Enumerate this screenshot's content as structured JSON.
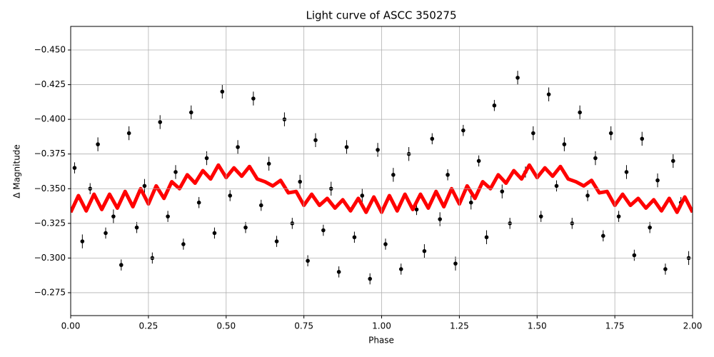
{
  "chart_data": {
    "type": "scatter",
    "title": "Light curve of ASCC 350275",
    "x_label": "Phase",
    "y_label": "Δ Magnitude",
    "xlim": [
      0,
      2
    ],
    "ylim": [
      -0.467,
      -0.2585
    ],
    "y_inverted": true,
    "grid": true,
    "xticks": [
      {
        "value": 0,
        "label": "0.00"
      },
      {
        "value": 0.25,
        "label": "0.25"
      },
      {
        "value": 0.5,
        "label": "0.50"
      },
      {
        "value": 0.75,
        "label": "0.75"
      },
      {
        "value": 1,
        "label": "1.00"
      },
      {
        "value": 1.25,
        "label": "1.25"
      },
      {
        "value": 1.5,
        "label": "1.50"
      },
      {
        "value": 1.75,
        "label": "1.75"
      },
      {
        "value": 2,
        "label": "2.00"
      }
    ],
    "yticks": [
      {
        "value": -0.45,
        "label": "−0.450"
      },
      {
        "value": -0.425,
        "label": "−0.425"
      },
      {
        "value": -0.4,
        "label": "−0.400"
      },
      {
        "value": -0.375,
        "label": "−0.375"
      },
      {
        "value": -0.35,
        "label": "−0.350"
      },
      {
        "value": -0.325,
        "label": "−0.325"
      },
      {
        "value": -0.3,
        "label": "−0.300"
      },
      {
        "value": -0.275,
        "label": "−0.275"
      }
    ],
    "series": [
      {
        "kind": "scatter",
        "color": "#000000",
        "x": [
          0.0125,
          0.0375,
          0.0625,
          0.0875,
          0.1125,
          0.1375,
          0.1625,
          0.1875,
          0.2125,
          0.2375,
          0.2625,
          0.2875,
          0.3125,
          0.3375,
          0.3625,
          0.3875,
          0.4125,
          0.4375,
          0.4625,
          0.4875,
          0.5125,
          0.5375,
          0.5625,
          0.5875,
          0.6125,
          0.6375,
          0.6625,
          0.6875,
          0.7125,
          0.7375,
          0.7625,
          0.7875,
          0.8125,
          0.8375,
          0.8625,
          0.8875,
          0.9125,
          0.9375,
          0.9625,
          0.9875,
          1.0125,
          1.0375,
          1.0625,
          1.0875,
          1.1125,
          1.1375,
          1.1625,
          1.1875,
          1.2125,
          1.2375,
          1.2625,
          1.2875,
          1.3125,
          1.3375,
          1.3625,
          1.3875,
          1.4125,
          1.4375,
          1.4625,
          1.4875,
          1.5125,
          1.5375,
          1.5625,
          1.5875,
          1.6125,
          1.6375,
          1.6625,
          1.6875,
          1.7125,
          1.7375,
          1.7625,
          1.7875,
          1.8125,
          1.8375,
          1.8625,
          1.8875,
          1.9125,
          1.9375,
          1.9625,
          1.9875
        ],
        "values": [
          -0.365,
          -0.312,
          -0.35,
          -0.382,
          -0.318,
          -0.33,
          -0.295,
          -0.39,
          -0.322,
          -0.352,
          -0.3,
          -0.398,
          -0.33,
          -0.362,
          -0.31,
          -0.405,
          -0.34,
          -0.372,
          -0.318,
          -0.42,
          -0.345,
          -0.38,
          -0.322,
          -0.415,
          -0.338,
          -0.368,
          -0.312,
          -0.4,
          -0.325,
          -0.355,
          -0.298,
          -0.385,
          -0.32,
          -0.35,
          -0.29,
          -0.38,
          -0.315,
          -0.345,
          -0.285,
          -0.378,
          -0.31,
          -0.36,
          -0.292,
          -0.375,
          -0.335,
          -0.305,
          -0.386,
          -0.328,
          -0.36,
          -0.296,
          -0.392,
          -0.34,
          -0.37,
          -0.315,
          -0.41,
          -0.348,
          -0.325,
          -0.43,
          -0.362,
          -0.39,
          -0.33,
          -0.418,
          -0.352,
          -0.382,
          -0.325,
          -0.405,
          -0.345,
          -0.372,
          -0.316,
          -0.39,
          -0.33,
          -0.362,
          -0.302,
          -0.386,
          -0.322,
          -0.356,
          -0.292,
          -0.37,
          -0.34,
          -0.3
        ],
        "errors": [
          0.004,
          0.005,
          0.004,
          0.005,
          0.004,
          0.005,
          0.004,
          0.005,
          0.004,
          0.005,
          0.004,
          0.005,
          0.004,
          0.005,
          0.004,
          0.005,
          0.004,
          0.005,
          0.004,
          0.005,
          0.004,
          0.005,
          0.004,
          0.005,
          0.004,
          0.005,
          0.004,
          0.005,
          0.004,
          0.005,
          0.004,
          0.005,
          0.004,
          0.005,
          0.004,
          0.005,
          0.004,
          0.005,
          0.004,
          0.005,
          0.004,
          0.005,
          0.004,
          0.005,
          0.004,
          0.005,
          0.004,
          0.005,
          0.004,
          0.005,
          0.004,
          0.005,
          0.004,
          0.005,
          0.004,
          0.005,
          0.004,
          0.005,
          0.004,
          0.005,
          0.004,
          0.005,
          0.004,
          0.005,
          0.004,
          0.005,
          0.004,
          0.005,
          0.004,
          0.005,
          0.004,
          0.005,
          0.004,
          0.005,
          0.004,
          0.005,
          0.004,
          0.005,
          0.004,
          0.005
        ]
      },
      {
        "kind": "line",
        "color": "#ff0000",
        "x": [
          0,
          0.025,
          0.05,
          0.075,
          0.1,
          0.125,
          0.15,
          0.175,
          0.2,
          0.225,
          0.25,
          0.275,
          0.3,
          0.325,
          0.35,
          0.375,
          0.4,
          0.425,
          0.45,
          0.475,
          0.5,
          0.525,
          0.55,
          0.575,
          0.6,
          0.625,
          0.65,
          0.675,
          0.7,
          0.725,
          0.75,
          0.775,
          0.8,
          0.825,
          0.85,
          0.875,
          0.9,
          0.925,
          0.95,
          0.975,
          1,
          1.025,
          1.05,
          1.075,
          1.1,
          1.125,
          1.15,
          1.175,
          1.2,
          1.225,
          1.25,
          1.275,
          1.3,
          1.325,
          1.35,
          1.375,
          1.4,
          1.425,
          1.45,
          1.475,
          1.5,
          1.525,
          1.55,
          1.575,
          1.6,
          1.625,
          1.65,
          1.675,
          1.7,
          1.725,
          1.75,
          1.775,
          1.8,
          1.825,
          1.85,
          1.875,
          1.9,
          1.925,
          1.95,
          1.975,
          2
        ],
        "values": [
          -0.333,
          -0.345,
          -0.334,
          -0.346,
          -0.335,
          -0.346,
          -0.336,
          -0.348,
          -0.337,
          -0.35,
          -0.339,
          -0.352,
          -0.343,
          -0.355,
          -0.35,
          -0.36,
          -0.354,
          -0.363,
          -0.357,
          -0.367,
          -0.358,
          -0.365,
          -0.359,
          -0.366,
          -0.357,
          -0.355,
          -0.352,
          -0.356,
          -0.347,
          -0.348,
          -0.338,
          -0.346,
          -0.338,
          -0.343,
          -0.336,
          -0.342,
          -0.334,
          -0.343,
          -0.333,
          -0.344,
          -0.333,
          -0.345,
          -0.334,
          -0.346,
          -0.335,
          -0.346,
          -0.336,
          -0.348,
          -0.337,
          -0.35,
          -0.339,
          -0.352,
          -0.343,
          -0.355,
          -0.35,
          -0.36,
          -0.354,
          -0.363,
          -0.357,
          -0.367,
          -0.358,
          -0.365,
          -0.359,
          -0.366,
          -0.357,
          -0.355,
          -0.352,
          -0.356,
          -0.347,
          -0.348,
          -0.338,
          -0.346,
          -0.338,
          -0.343,
          -0.336,
          -0.342,
          -0.334,
          -0.343,
          -0.333,
          -0.344,
          -0.333
        ]
      }
    ]
  }
}
